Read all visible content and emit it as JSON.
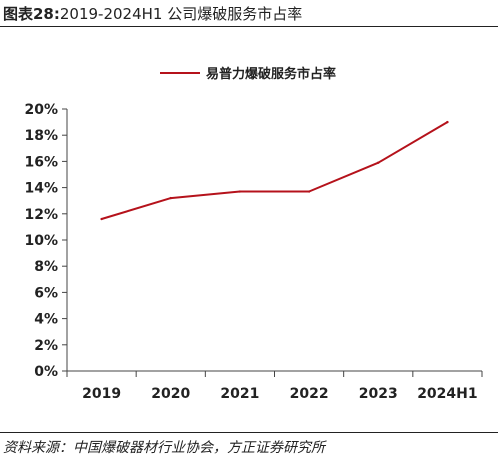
{
  "header": {
    "figure_label": "图表28:",
    "figure_title": "2019-2024H1 公司爆破服务市占率"
  },
  "source_note": "资料来源：中国爆破器材行业协会，方正证券研究所",
  "colors": {
    "series": "#b5121b",
    "axis": "#444444",
    "text": "#222222"
  },
  "chart_data": {
    "type": "line",
    "title": "",
    "xlabel": "",
    "ylabel": "",
    "categories": [
      "2019",
      "2020",
      "2021",
      "2022",
      "2023",
      "2024H1"
    ],
    "series": [
      {
        "name": "易普力爆破服务市占率",
        "values": [
          11.6,
          13.2,
          13.7,
          13.7,
          15.9,
          19.0
        ]
      }
    ],
    "ylim": [
      0,
      20
    ],
    "yticks": [
      "0%",
      "2%",
      "4%",
      "6%",
      "8%",
      "10%",
      "12%",
      "14%",
      "16%",
      "18%",
      "20%"
    ],
    "grid": false,
    "legend_position": "top-center"
  }
}
